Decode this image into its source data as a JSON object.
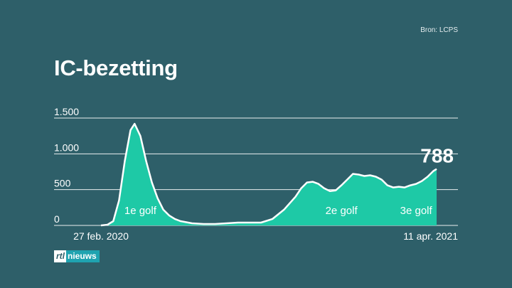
{
  "source": "Bron: LCPS",
  "title": "IC-bezetting",
  "logo": {
    "prefix": "rtl",
    "word": "nieuws"
  },
  "colors": {
    "background": "#2e5f69",
    "area": "#1ec9a6",
    "line": "#ffffff",
    "grid": "#ffffff"
  },
  "chart_data": {
    "type": "area",
    "title": "IC-bezetting",
    "x_start_label": "27 feb. 2020",
    "x_end_label": "11 apr. 2021",
    "ylim": [
      0,
      1500
    ],
    "yticks": [
      0,
      500,
      1000,
      1500
    ],
    "ytick_labels": [
      "0",
      "500",
      "1.000",
      "1.500"
    ],
    "grid": true,
    "series": [
      {
        "x": [
          "2020-02-27",
          "2020-03-06",
          "2020-03-13",
          "2020-03-20",
          "2020-03-27",
          "2020-04-03",
          "2020-04-08",
          "2020-04-15",
          "2020-04-22",
          "2020-04-29",
          "2020-05-06",
          "2020-05-13",
          "2020-05-20",
          "2020-05-27",
          "2020-06-03",
          "2020-06-17",
          "2020-07-01",
          "2020-07-15",
          "2020-07-29",
          "2020-08-12",
          "2020-08-26",
          "2020-09-09",
          "2020-09-23",
          "2020-10-07",
          "2020-10-21",
          "2020-10-28",
          "2020-11-04",
          "2020-11-11",
          "2020-11-18",
          "2020-11-25",
          "2020-12-02",
          "2020-12-09",
          "2020-12-16",
          "2020-12-23",
          "2020-12-30",
          "2021-01-06",
          "2021-01-13",
          "2021-01-20",
          "2021-01-27",
          "2021-02-03",
          "2021-02-10",
          "2021-02-17",
          "2021-02-24",
          "2021-03-03",
          "2021-03-10",
          "2021-03-17",
          "2021-03-24",
          "2021-03-31",
          "2021-04-07",
          "2021-04-11"
        ],
        "values": [
          0,
          10,
          60,
          350,
          900,
          1330,
          1420,
          1250,
          900,
          600,
          380,
          220,
          140,
          90,
          60,
          30,
          20,
          20,
          30,
          40,
          40,
          40,
          90,
          220,
          400,
          520,
          600,
          610,
          580,
          520,
          480,
          490,
          560,
          640,
          720,
          710,
          690,
          700,
          680,
          640,
          560,
          530,
          540,
          530,
          560,
          580,
          620,
          680,
          760,
          788
        ]
      }
    ],
    "annotations": [
      {
        "text": "1e golf",
        "x": "2020-04-15",
        "y": 210
      },
      {
        "text": "2e golf",
        "x": "2020-12-16",
        "y": 210
      },
      {
        "text": "3e golf",
        "x": "2021-03-17",
        "y": 210
      },
      {
        "text": "788",
        "x": "2021-04-11",
        "y": 1000
      }
    ]
  }
}
